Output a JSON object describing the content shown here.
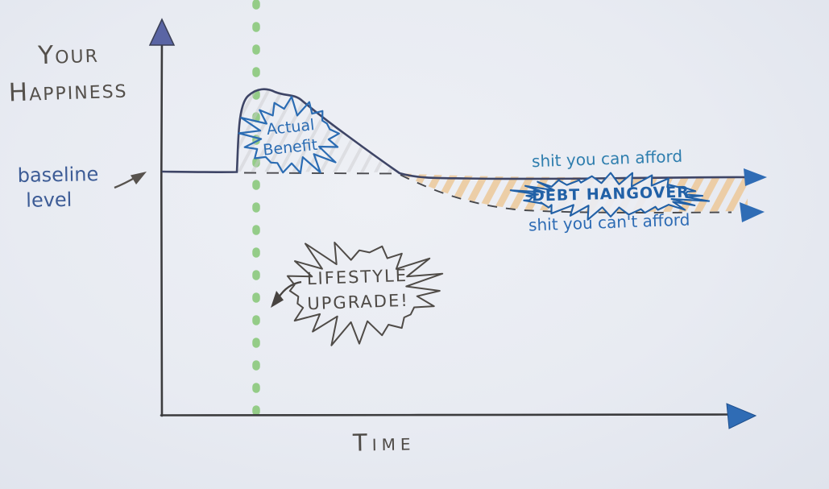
{
  "labels": {
    "y_axis_line1": "Your",
    "y_axis_line2": "Happiness",
    "x_axis": "Time",
    "baseline_line1": "baseline",
    "baseline_line2": "level",
    "benefit_line1": "Actual",
    "benefit_line2": "Benefit.",
    "upgrade_line1": "LIFESTYLE",
    "upgrade_line2": "UPGRADE!",
    "afford": "shit you can afford",
    "debt": "DEBT HANGOVER",
    "cant_afford": "shit you can't afford"
  },
  "icons": {
    "y_axis_arrow": "up-arrowhead",
    "x_axis_arrow": "right-arrowhead",
    "afford_line_arrow": "right-arrowhead",
    "cant_afford_line_arrow": "right-arrowhead",
    "baseline_pointer": "right-arrow",
    "upgrade_pointer": "curved-down-left-arrow"
  },
  "colors": {
    "paper": "#e9ecf2",
    "pencil": "#4e4a46",
    "ink_curve": "#3e4566",
    "hand_blue": "#2b6cb3",
    "hand_teal": "#2e7eae",
    "hand_navy": "#3d5c96",
    "green_dotted_line": "#8cc97e",
    "orange_hatch": "#ecca9e",
    "gray_hatch": "#c9c9cc",
    "arrow_blue": "#2f6cb5"
  },
  "chart_data": {
    "type": "line",
    "title": "",
    "xlabel": "Time",
    "ylabel": "Your Happiness",
    "x_unit": "relative time, unlabeled sketch axis (0-100)",
    "y_unit": "happiness relative to baseline (0 = baseline level)",
    "xlim": [
      0,
      100
    ],
    "ylim": [
      -60,
      120
    ],
    "grid": false,
    "legend_position": "inline handwritten annotations",
    "baseline": {
      "label": "baseline level",
      "y": 0,
      "style": "dashed after upgrade point"
    },
    "event_marker": {
      "type": "vertical-dotted-line",
      "color": "#8cc97e",
      "x": 16,
      "label": "LIFESTYLE UPGRADE!"
    },
    "series": [
      {
        "name": "shit you can afford",
        "style": "solid",
        "color": "#3e4566",
        "x": [
          0,
          12,
          14,
          17,
          22,
          29,
          34,
          40,
          46,
          57,
          75,
          100
        ],
        "y": [
          0,
          0,
          95,
          100,
          92,
          62,
          38,
          8,
          -5,
          -7,
          -6,
          -6
        ]
      },
      {
        "name": "shit you can't afford",
        "style": "dashed",
        "color": "#47484c",
        "x": [
          40,
          46,
          54,
          61,
          75,
          100
        ],
        "y": [
          -5,
          -24,
          -40,
          -47,
          -49,
          -50
        ]
      }
    ],
    "shaded_regions": [
      {
        "label": "Actual Benefit.",
        "between": [
          "solid curve",
          "baseline"
        ],
        "x_range": [
          13,
          40
        ],
        "hatch_color": "#c9c9cc"
      },
      {
        "label": "DEBT HANGOVER",
        "between": [
          "shit you can afford",
          "shit you can't afford"
        ],
        "x_range": [
          40,
          100
        ],
        "hatch_color": "#ecca9e"
      }
    ],
    "annotations": [
      {
        "text": "Actual Benefit.",
        "x": 21,
        "y": 45
      },
      {
        "text": "LIFESTYLE UPGRADE!",
        "x": 30,
        "y": -75,
        "points_to": "green dotted line"
      },
      {
        "text": "shit you can afford",
        "x": 75,
        "y": 12
      },
      {
        "text": "DEBT HANGOVER",
        "x": 75,
        "y": -28
      },
      {
        "text": "shit you can't afford",
        "x": 76,
        "y": -62
      },
      {
        "text": "baseline level",
        "x": -18,
        "y": -8,
        "points_to": "baseline"
      }
    ]
  }
}
